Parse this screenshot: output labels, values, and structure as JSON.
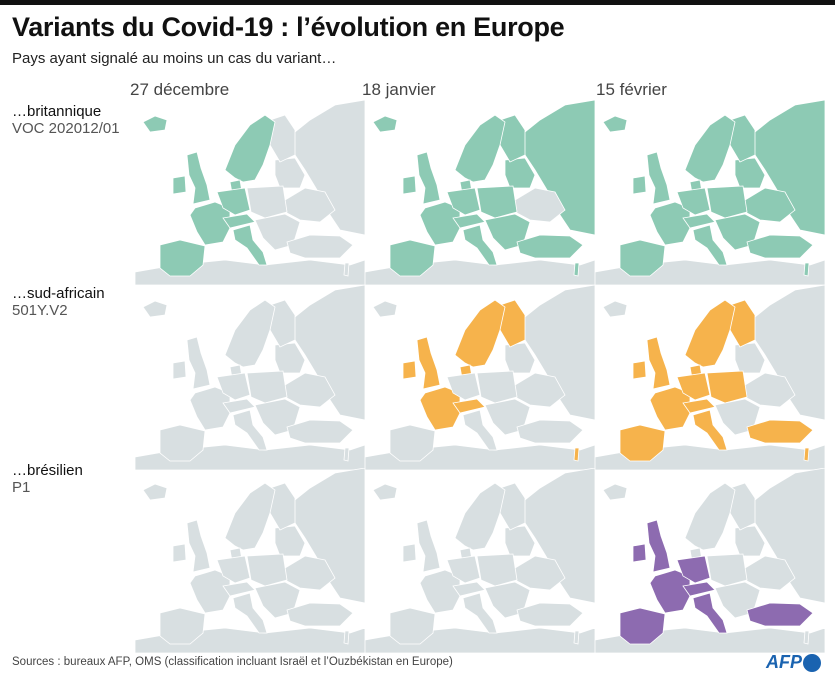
{
  "title": "Variants du Covid-19 : l’évolution en Europe",
  "subtitle": "Pays ayant signalé au moins un cas du variant…",
  "dates": [
    "27 décembre",
    "18 janvier",
    "15 février"
  ],
  "colors": {
    "land": "#d8dfe1",
    "britannique": "#8dcab4",
    "sud_africain": "#f6b34c",
    "bresilien": "#8d6bb0"
  },
  "variants": [
    {
      "key": "britannique",
      "label": "…britannique",
      "code": "VOC 202012/01",
      "highlighted": [
        [
          "iceland",
          "uk",
          "ireland",
          "france",
          "iberia",
          "germany",
          "denmark",
          "scandinavia",
          "italy",
          "switzerland"
        ],
        [
          "iceland",
          "uk",
          "ireland",
          "france",
          "iberia",
          "germany",
          "denmark",
          "scandinavia",
          "finland",
          "italy",
          "switzerland",
          "central",
          "balkans",
          "russia",
          "turkey",
          "israel",
          "baltics"
        ],
        [
          "iceland",
          "uk",
          "ireland",
          "france",
          "iberia",
          "germany",
          "denmark",
          "scandinavia",
          "finland",
          "italy",
          "switzerland",
          "central",
          "balkans",
          "russia",
          "turkey",
          "israel",
          "baltics",
          "ukraine"
        ]
      ]
    },
    {
      "key": "sud_africain",
      "label": "…sud-africain",
      "code": "501Y.V2",
      "highlighted": [
        [],
        [
          "uk",
          "ireland",
          "france",
          "scandinavia",
          "finland",
          "denmark",
          "switzerland",
          "israel"
        ],
        [
          "uk",
          "ireland",
          "france",
          "iberia",
          "germany",
          "scandinavia",
          "finland",
          "denmark",
          "switzerland",
          "italy",
          "central",
          "turkey",
          "israel"
        ]
      ]
    },
    {
      "key": "bresilien",
      "label": "…brésilien",
      "code": "P1",
      "highlighted": [
        [],
        [],
        [
          "ireland",
          "uk",
          "france",
          "iberia",
          "germany",
          "switzerland",
          "italy",
          "turkey"
        ]
      ]
    }
  ],
  "footer": {
    "sources": "Sources : bureaux AFP, OMS (classification incluant Israël et l’Ouzbékistan en Europe)",
    "logo": "AFP"
  }
}
